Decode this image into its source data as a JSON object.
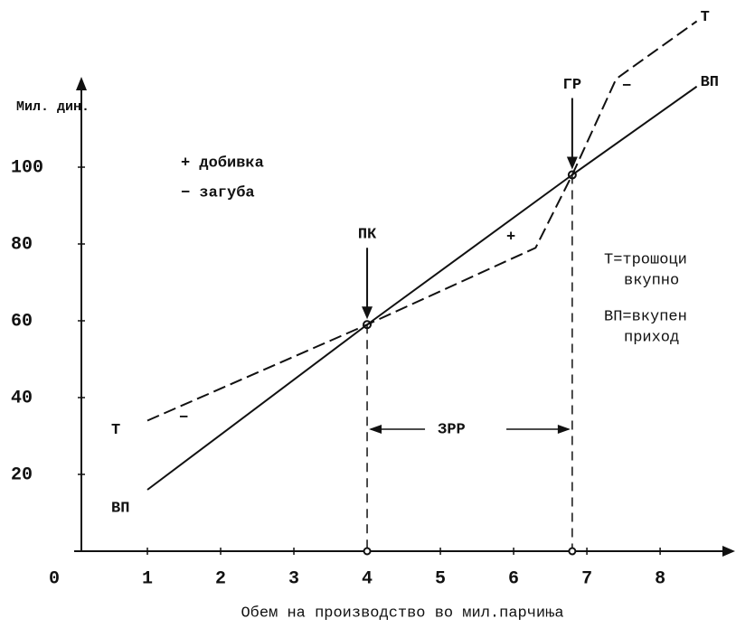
{
  "chart_data": {
    "type": "line",
    "y_label": "Мил. дин.",
    "x_label": "Обем на производство во мил.парчиња",
    "xlim": [
      0,
      8.9
    ],
    "ylim": [
      0,
      120
    ],
    "xticks": [
      0,
      1,
      2,
      3,
      4,
      5,
      6,
      7,
      8
    ],
    "yticks": [
      20,
      40,
      60,
      80,
      100
    ],
    "series": [
      {
        "name": "Т",
        "color": "#111111",
        "dash": "dashed",
        "x": [
          1,
          4,
          6.3,
          6.8,
          7.4,
          8.5
        ],
        "values": [
          34,
          59,
          79,
          98,
          123,
          138
        ]
      },
      {
        "name": "ВП",
        "color": "#111111",
        "dash": "solid",
        "x": [
          1,
          4,
          6.8,
          8.5
        ],
        "values": [
          16,
          59,
          98,
          121
        ]
      }
    ],
    "annotations": {
      "profit": "+ добивка",
      "loss": "− загуба",
      "plus": "+",
      "minus": "−",
      "pk": "ПК",
      "gr": "ГР",
      "zrr": "ЗРР",
      "legend_t_1": "Т=трошоци",
      "legend_t_2": "вкупно",
      "legend_vp_1": "ВП=вкупен",
      "legend_vp_2": "приход"
    }
  }
}
